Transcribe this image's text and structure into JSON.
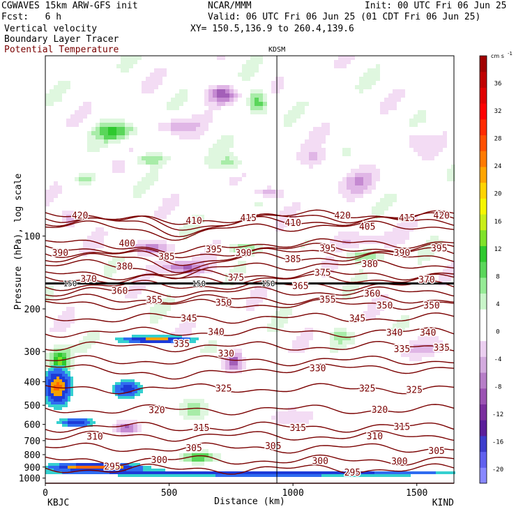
{
  "header": {
    "model": "CGWAVES 15km ARW-GFS init",
    "org": "NCAR/MMM",
    "init": "Init: 00 UTC Fri 06 Jun 25",
    "fcst": "Fcst:   6 h",
    "valid": "Valid: 06 UTC Fri 06 Jun 25 (01 CDT Fri 06 Jun 25)",
    "field1": "Vertical velocity",
    "field2": "Boundary Layer Tracer",
    "field3": "Potential Temperature",
    "xy": "XY= 150.5,136.9 to 260.4,139.6"
  },
  "colors": {
    "theta": "#7a0000",
    "field3_text": "#7a0000",
    "pbl_line": "#000000"
  },
  "chart_data": {
    "type": "heatmap",
    "title": "Vertical velocity",
    "xlabel": "Distance (km)",
    "ylabel": "Pressure (hPa), log scale",
    "xlim": [
      0,
      1650
    ],
    "ylim": [
      1050,
      18
    ],
    "x_ticks": [
      0,
      500,
      1000,
      1500
    ],
    "y_ticks": [
      100,
      200,
      300,
      400,
      500,
      600,
      700,
      800,
      900,
      1000
    ],
    "cross_marker": {
      "name": "KDSM",
      "x": 935
    },
    "endpoints": {
      "left": "KBJC",
      "right": "KIND"
    },
    "colorbar": {
      "unit_label": "cm s",
      "unit_exp": "-1",
      "ticks": [
        36,
        32,
        28,
        24,
        20,
        16,
        12,
        8,
        4,
        0,
        -4,
        -8,
        -12,
        -16,
        -20
      ],
      "range": [
        -22,
        40
      ],
      "colors": [
        "#8888ff",
        "#6060ee",
        "#3d3dcc",
        "#5a1e9a",
        "#7a2f9e",
        "#9b53b3",
        "#b77ec8",
        "#d3aade",
        "#ebcff0",
        "#ffffff",
        "#ffffff",
        "#c9f5c9",
        "#96eb96",
        "#5ad65a",
        "#2ec92e",
        "#7fe22a",
        "#c9ee1a",
        "#f6f600",
        "#ffd400",
        "#ffa500",
        "#ff7a00",
        "#ff5000",
        "#ff2a00",
        "#ff0000",
        "#e00000",
        "#c00000",
        "#a00000"
      ]
    },
    "theta_labels": [
      {
        "v": 420,
        "x": 140,
        "p": 82
      },
      {
        "v": 410,
        "x": 600,
        "p": 86
      },
      {
        "v": 415,
        "x": 820,
        "p": 84
      },
      {
        "v": 410,
        "x": 1000,
        "p": 88
      },
      {
        "v": 420,
        "x": 1200,
        "p": 82
      },
      {
        "v": 405,
        "x": 1300,
        "p": 91
      },
      {
        "v": 415,
        "x": 1460,
        "p": 84
      },
      {
        "v": 420,
        "x": 1600,
        "p": 82
      },
      {
        "v": 390,
        "x": 60,
        "p": 117
      },
      {
        "v": 400,
        "x": 330,
        "p": 107
      },
      {
        "v": 385,
        "x": 490,
        "p": 121
      },
      {
        "v": 395,
        "x": 680,
        "p": 113
      },
      {
        "v": 390,
        "x": 800,
        "p": 117
      },
      {
        "v": 395,
        "x": 1140,
        "p": 112
      },
      {
        "v": 390,
        "x": 1440,
        "p": 117
      },
      {
        "v": 395,
        "x": 1590,
        "p": 112
      },
      {
        "v": 380,
        "x": 320,
        "p": 133
      },
      {
        "v": 385,
        "x": 1000,
        "p": 124
      },
      {
        "v": 380,
        "x": 1310,
        "p": 130
      },
      {
        "v": 370,
        "x": 175,
        "p": 150
      },
      {
        "v": 375,
        "x": 770,
        "p": 148
      },
      {
        "v": 375,
        "x": 1120,
        "p": 141
      },
      {
        "v": 370,
        "x": 1540,
        "p": 151
      },
      {
        "v": 360,
        "x": 300,
        "p": 168
      },
      {
        "v": 365,
        "x": 1030,
        "p": 160
      },
      {
        "v": 360,
        "x": 1320,
        "p": 172
      },
      {
        "v": 355,
        "x": 440,
        "p": 183
      },
      {
        "v": 350,
        "x": 720,
        "p": 188
      },
      {
        "v": 355,
        "x": 1140,
        "p": 182
      },
      {
        "v": 350,
        "x": 1370,
        "p": 193
      },
      {
        "v": 350,
        "x": 1560,
        "p": 193
      },
      {
        "v": 345,
        "x": 580,
        "p": 218
      },
      {
        "v": 345,
        "x": 1260,
        "p": 218
      },
      {
        "v": 340,
        "x": 690,
        "p": 248
      },
      {
        "v": 340,
        "x": 1410,
        "p": 250
      },
      {
        "v": 340,
        "x": 1545,
        "p": 250
      },
      {
        "v": 335,
        "x": 550,
        "p": 278
      },
      {
        "v": 335,
        "x": 1440,
        "p": 292
      },
      {
        "v": 335,
        "x": 1600,
        "p": 288
      },
      {
        "v": 330,
        "x": 730,
        "p": 305
      },
      {
        "v": 330,
        "x": 1100,
        "p": 350
      },
      {
        "v": 325,
        "x": 720,
        "p": 425
      },
      {
        "v": 325,
        "x": 1300,
        "p": 425
      },
      {
        "v": 325,
        "x": 1490,
        "p": 430
      },
      {
        "v": 320,
        "x": 450,
        "p": 522
      },
      {
        "v": 320,
        "x": 1350,
        "p": 520
      },
      {
        "v": 315,
        "x": 630,
        "p": 617
      },
      {
        "v": 315,
        "x": 1020,
        "p": 617
      },
      {
        "v": 315,
        "x": 1440,
        "p": 612
      },
      {
        "v": 310,
        "x": 200,
        "p": 672
      },
      {
        "v": 310,
        "x": 1330,
        "p": 668
      },
      {
        "v": 305,
        "x": 600,
        "p": 748
      },
      {
        "v": 305,
        "x": 920,
        "p": 733
      },
      {
        "v": 305,
        "x": 1580,
        "p": 770
      },
      {
        "v": 300,
        "x": 460,
        "p": 837
      },
      {
        "v": 300,
        "x": 1110,
        "p": 845
      },
      {
        "v": 300,
        "x": 1430,
        "p": 848
      },
      {
        "v": 295,
        "x": 270,
        "p": 893
      },
      {
        "v": 295,
        "x": 1240,
        "p": 943
      }
    ],
    "pbl_labels": [
      {
        "v": 150,
        "x": 100,
        "p": 157
      },
      {
        "v": 150,
        "x": 620,
        "p": 157
      },
      {
        "v": 150,
        "x": 900,
        "p": 157
      }
    ],
    "w_features": [
      {
        "sign": -1,
        "x": 720,
        "p": 26,
        "rx": 60,
        "rp": 0.09,
        "amp": 10
      },
      {
        "sign": -1,
        "x": 520,
        "p": 35,
        "rx": 90,
        "rp": 0.08,
        "amp": 5
      },
      {
        "sign": -1,
        "x": 900,
        "p": 66,
        "rx": 60,
        "rp": 0.06,
        "amp": 8
      },
      {
        "sign": -1,
        "x": 1100,
        "p": 48,
        "rx": 70,
        "rp": 0.1,
        "amp": 4
      },
      {
        "sign": -1,
        "x": 1260,
        "p": 60,
        "rx": 80,
        "rp": 0.12,
        "amp": 4
      },
      {
        "sign": -1,
        "x": 1480,
        "p": 40,
        "rx": 60,
        "rp": 0.1,
        "amp": 4
      },
      {
        "sign": -1,
        "x": 100,
        "p": 85,
        "rx": 40,
        "rp": 0.1,
        "amp": 8
      },
      {
        "sign": -1,
        "x": 420,
        "p": 112,
        "rx": 120,
        "rp": 0.07,
        "amp": 7
      },
      {
        "sign": -1,
        "x": 560,
        "p": 135,
        "rx": 90,
        "rp": 0.06,
        "amp": 8
      },
      {
        "sign": -1,
        "x": 1250,
        "p": 105,
        "rx": 150,
        "rp": 0.12,
        "amp": 3
      },
      {
        "sign": -1,
        "x": 760,
        "p": 330,
        "rx": 40,
        "rp": 0.1,
        "amp": 9
      },
      {
        "sign": -1,
        "x": 330,
        "p": 620,
        "rx": 50,
        "rp": 0.06,
        "amp": 9
      },
      {
        "sign": -1,
        "x": 1000,
        "p": 560,
        "rx": 130,
        "rp": 0.12,
        "amp": 3
      },
      {
        "sign": -1,
        "x": 1500,
        "p": 300,
        "rx": 120,
        "rp": 0.12,
        "amp": 3
      },
      {
        "sign": 1,
        "x": 280,
        "p": 37,
        "rx": 80,
        "rp": 0.08,
        "amp": 9
      },
      {
        "sign": 1,
        "x": 860,
        "p": 28,
        "rx": 40,
        "rp": 0.12,
        "amp": 10
      },
      {
        "sign": 1,
        "x": 420,
        "p": 48,
        "rx": 70,
        "rp": 0.05,
        "amp": 6
      },
      {
        "sign": 1,
        "x": 160,
        "p": 58,
        "rx": 50,
        "rp": 0.05,
        "amp": 6
      },
      {
        "sign": 1,
        "x": 760,
        "p": 50,
        "rx": 60,
        "rp": 0.08,
        "amp": 5
      },
      {
        "sign": 1,
        "x": 1280,
        "p": 120,
        "rx": 90,
        "rp": 0.06,
        "amp": 7
      },
      {
        "sign": 1,
        "x": 800,
        "p": 112,
        "rx": 70,
        "rp": 0.05,
        "amp": 6
      },
      {
        "sign": 1,
        "x": 1200,
        "p": 260,
        "rx": 60,
        "rp": 0.08,
        "amp": 5
      },
      {
        "sign": 1,
        "x": 600,
        "p": 520,
        "rx": 60,
        "rp": 0.12,
        "amp": 5
      },
      {
        "sign": 1,
        "x": 60,
        "p": 330,
        "rx": 40,
        "rp": 0.12,
        "amp": 14
      },
      {
        "sign": 1,
        "x": 620,
        "p": 820,
        "rx": 70,
        "rp": 0.05,
        "amp": 10
      }
    ],
    "tracer_features": [
      {
        "x": 450,
        "p": 268,
        "rx": 170,
        "rp": 0.04,
        "amp": 1.0
      },
      {
        "x": 330,
        "p": 430,
        "rx": 70,
        "rp": 0.1,
        "amp": 0.8
      },
      {
        "x": 50,
        "p": 420,
        "rx": 60,
        "rp": 0.2,
        "amp": 1.1
      },
      {
        "x": 130,
        "p": 590,
        "rx": 80,
        "rp": 0.05,
        "amp": 0.8
      },
      {
        "x": 900,
        "p": 955,
        "rx": 900,
        "rp": 0.03,
        "amp": 0.9
      },
      {
        "x": 200,
        "p": 900,
        "rx": 200,
        "rp": 0.04,
        "amp": 1.2
      }
    ]
  }
}
